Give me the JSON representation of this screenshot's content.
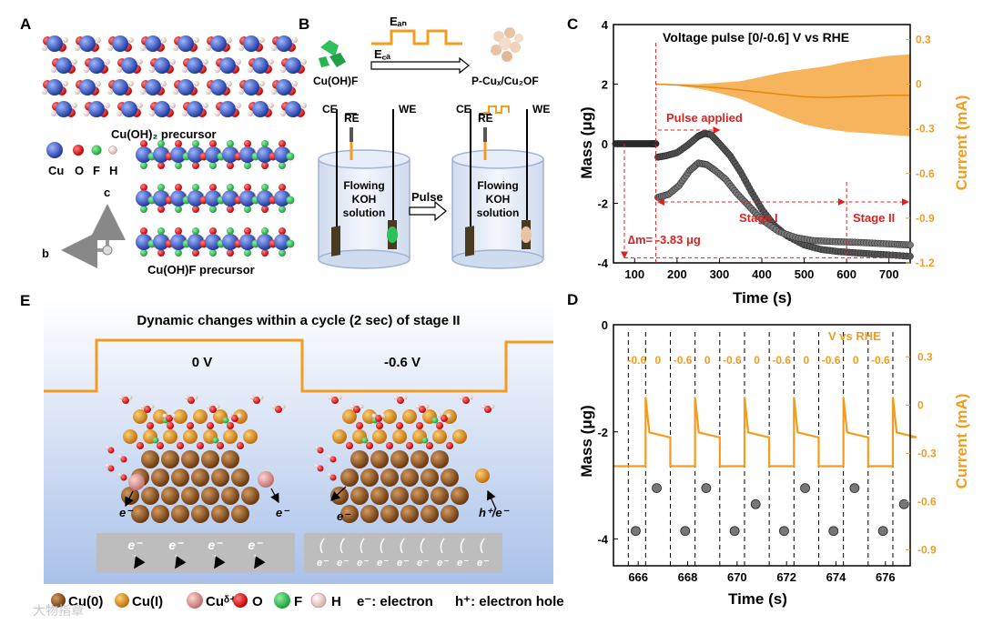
{
  "panel_labels": {
    "a": "A",
    "b": "B",
    "c": "C",
    "d": "D",
    "e": "E"
  },
  "panel_a": {
    "top_caption": "Cu(OH)₂ precursor",
    "bottom_caption": "Cu(OH)F precursor",
    "legend": [
      "Cu",
      "O",
      "F",
      "H"
    ],
    "axes": {
      "c": "c",
      "b": "b"
    }
  },
  "panel_b": {
    "left_material": "Cu(OH)F",
    "right_material": "P-Cuₓ/Cu₂OF",
    "e_an": "Eₐₙ",
    "e_ca": "E꜀ₐ",
    "pulse": "Pulse",
    "electrodes": {
      "ce": "CE",
      "re": "RE",
      "we": "WE"
    },
    "solution": "Flowing KOH solution"
  },
  "panel_e": {
    "title": "Dynamic changes within a cycle (2 sec) of stage II",
    "left_potential": "0 V",
    "right_potential": "-0.6 V",
    "electron": "e⁻",
    "hole_electron": "h⁺/e⁻",
    "legend": [
      "Cu(0)",
      "Cu(I)",
      "Cuᵟ⁺",
      "O",
      "F",
      "H",
      "e⁻: electron",
      "h⁺: electron hole"
    ],
    "watermark": "大物指章"
  },
  "chart_data": [
    {
      "id": "C",
      "type": "scatter",
      "title": "Voltage pulse [0/-0.6] V vs RHE",
      "xlabel": "Time (s)",
      "ylabel": "Mass (μg)",
      "y2label": "Current (mA)",
      "xlim": [
        50,
        750
      ],
      "ylim": [
        -4,
        4
      ],
      "y2lim": [
        -1.2,
        0.4
      ],
      "xticks": [
        100,
        200,
        300,
        400,
        500,
        600,
        700
      ],
      "yticks": [
        -4,
        -2,
        0,
        2,
        4
      ],
      "y2ticks": [
        0.3,
        0,
        -0.3,
        -0.6,
        -0.9,
        -1.2
      ],
      "annotations": [
        "Pulse applied",
        "Stage I",
        "Stage II",
        "∆m= -3.83 μg"
      ],
      "series": [
        {
          "color": "#2e2e2e",
          "x": [
            55,
            80,
            100,
            120,
            140,
            150
          ],
          "y": [
            0,
            0,
            0,
            0,
            0,
            0
          ]
        },
        {
          "color": "#555555",
          "x": [
            155,
            175,
            200,
            225,
            250,
            265,
            280,
            300,
            325,
            350,
            375,
            400,
            430,
            460,
            500,
            540,
            580,
            620,
            660,
            700,
            750
          ],
          "y": [
            -0.45,
            -0.4,
            -0.3,
            -0.05,
            0.25,
            0.35,
            0.3,
            0.0,
            -0.4,
            -0.95,
            -1.6,
            -2.2,
            -2.75,
            -3.1,
            -3.4,
            -3.55,
            -3.62,
            -3.66,
            -3.7,
            -3.73,
            -3.78
          ]
        },
        {
          "color": "#777777",
          "x": [
            155,
            180,
            205,
            230,
            250,
            270,
            290,
            315,
            340,
            370,
            400,
            440,
            480,
            520,
            560,
            600,
            640,
            680,
            720,
            750
          ],
          "y": [
            -1.8,
            -1.7,
            -1.4,
            -0.9,
            -0.65,
            -0.7,
            -0.9,
            -1.2,
            -1.65,
            -2.1,
            -2.55,
            -2.95,
            -3.15,
            -3.25,
            -3.28,
            -3.3,
            -3.32,
            -3.35,
            -3.38,
            -3.4
          ]
        },
        {
          "color": "#f39c1f",
          "x": [
            150,
            200,
            250,
            300,
            350,
            400,
            450,
            500,
            550,
            600,
            650,
            700,
            750
          ],
          "y_upper": [
            0,
            0,
            0,
            0.01,
            0.02,
            0.05,
            0.08,
            0.1,
            0.12,
            0.15,
            0.17,
            0.19,
            0.2
          ],
          "y_lower": [
            0,
            -0.01,
            -0.03,
            -0.06,
            -0.1,
            -0.16,
            -0.22,
            -0.27,
            -0.3,
            -0.32,
            -0.33,
            -0.34,
            -0.35
          ]
        }
      ]
    },
    {
      "id": "D",
      "type": "scatter",
      "xlabel": "Time (s)",
      "ylabel": "Mass (μg)",
      "y2label": "Current (mA)",
      "xlim": [
        665,
        677
      ],
      "ylim": [
        -4.5,
        0
      ],
      "y2lim": [
        -1.0,
        0.5
      ],
      "xticks": [
        666,
        668,
        670,
        672,
        674,
        676
      ],
      "yticks": [
        0,
        -2,
        -4
      ],
      "y2ticks": [
        0.3,
        0,
        -0.3,
        -0.6,
        -0.9
      ],
      "legend_note": "V vs RHE",
      "pulse_labels": [
        "-0.6",
        "0",
        "-0.6",
        "0",
        "-0.6",
        "0",
        "-0.6",
        "0",
        "-0.6",
        "0",
        "-0.6"
      ],
      "mass_points": {
        "x": [
          665.9,
          666.75,
          667.9,
          668.75,
          669.9,
          670.75,
          671.9,
          672.75,
          673.9,
          674.75,
          675.9,
          676.75
        ],
        "y": [
          -3.85,
          -3.05,
          -3.85,
          -3.05,
          -3.85,
          -3.35,
          -3.85,
          -3.05,
          -3.85,
          -3.05,
          -3.85,
          -3.35
        ]
      },
      "current_trace": {
        "high": -0.2,
        "low": -0.38,
        "spike": 0.05,
        "switch_high": [
          666.3,
          668.3,
          670.3,
          672.3,
          674.3,
          676.3
        ],
        "switch_low": [
          667.3,
          669.3,
          671.3,
          673.3,
          675.3
        ]
      }
    }
  ]
}
